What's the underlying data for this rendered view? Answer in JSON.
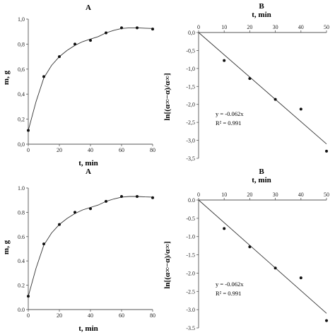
{
  "chart_data": [
    {
      "type": "scatter",
      "title": "A",
      "xlabel": "t, min",
      "ylabel": "m, g",
      "xlim": [
        0,
        80
      ],
      "ylim": [
        0,
        1.0
      ],
      "x_ticks": [
        0,
        20,
        40,
        60,
        80
      ],
      "x_tick_labels": [
        "0",
        "20",
        "40",
        "60",
        "80"
      ],
      "y_ticks": [
        0,
        0.2,
        0.4,
        0.6,
        0.8,
        1.0
      ],
      "y_tick_labels": [
        "0,0",
        "0,2",
        "0,4",
        "0,6",
        "0,8",
        "1,0"
      ],
      "points": [
        [
          0,
          0.11
        ],
        [
          10,
          0.54
        ],
        [
          20,
          0.7
        ],
        [
          30,
          0.8
        ],
        [
          40,
          0.83
        ],
        [
          50,
          0.89
        ],
        [
          60,
          0.93
        ],
        [
          70,
          0.93
        ],
        [
          80,
          0.92
        ]
      ],
      "curve": [
        [
          0,
          0.11
        ],
        [
          5,
          0.34
        ],
        [
          10,
          0.53
        ],
        [
          15,
          0.63
        ],
        [
          20,
          0.7
        ],
        [
          25,
          0.75
        ],
        [
          30,
          0.79
        ],
        [
          35,
          0.82
        ],
        [
          40,
          0.84
        ],
        [
          45,
          0.86
        ],
        [
          50,
          0.89
        ],
        [
          55,
          0.91
        ],
        [
          60,
          0.925
        ],
        [
          65,
          0.93
        ],
        [
          70,
          0.93
        ],
        [
          75,
          0.927
        ],
        [
          80,
          0.925
        ]
      ]
    },
    {
      "type": "scatter",
      "title": "B",
      "xlabel": "t, min",
      "ylabel": "ln[(α∞−α)/α∞]",
      "xlim": [
        0,
        50
      ],
      "ylim": [
        -3.5,
        0
      ],
      "x_ticks": [
        0,
        10,
        20,
        30,
        40,
        50
      ],
      "x_tick_labels": [
        "0",
        "10",
        "20",
        "30",
        "40",
        "50"
      ],
      "y_ticks": [
        0,
        -0.5,
        -1.0,
        -1.5,
        -2.0,
        -2.5,
        -3.0,
        -3.5
      ],
      "y_tick_labels": [
        "0,0",
        "-0,5",
        "-1,0",
        "-1,5",
        "-2,0",
        "-2,5",
        "-3,0",
        "-3,5"
      ],
      "points": [
        [
          10,
          -0.78
        ],
        [
          20,
          -1.28
        ],
        [
          30,
          -1.86
        ],
        [
          40,
          -2.13
        ],
        [
          50,
          -3.3
        ]
      ],
      "fit": {
        "slope": -0.062,
        "intercept": 0,
        "x_range": [
          0,
          50
        ]
      },
      "annotations": [
        "y = -0.062x",
        "R² = 0.991"
      ]
    },
    {
      "type": "scatter",
      "title": "A",
      "xlabel": "t, min",
      "ylabel": "m, g",
      "xlim": [
        0,
        80
      ],
      "ylim": [
        0,
        1.0
      ],
      "x_ticks": [
        0,
        20,
        40,
        60,
        80
      ],
      "x_tick_labels": [
        "0",
        "20",
        "40",
        "60",
        "80"
      ],
      "y_ticks": [
        0,
        0.2,
        0.4,
        0.6,
        0.8,
        1.0
      ],
      "y_tick_labels": [
        "0.0",
        "0.2",
        "0.4",
        "0.6",
        "0.8",
        "1.0"
      ],
      "points": [
        [
          0,
          0.11
        ],
        [
          10,
          0.54
        ],
        [
          20,
          0.7
        ],
        [
          30,
          0.8
        ],
        [
          40,
          0.83
        ],
        [
          50,
          0.89
        ],
        [
          60,
          0.93
        ],
        [
          70,
          0.93
        ],
        [
          80,
          0.92
        ]
      ],
      "curve": [
        [
          0,
          0.11
        ],
        [
          5,
          0.34
        ],
        [
          10,
          0.53
        ],
        [
          15,
          0.63
        ],
        [
          20,
          0.7
        ],
        [
          25,
          0.75
        ],
        [
          30,
          0.79
        ],
        [
          35,
          0.82
        ],
        [
          40,
          0.84
        ],
        [
          45,
          0.86
        ],
        [
          50,
          0.89
        ],
        [
          55,
          0.91
        ],
        [
          60,
          0.925
        ],
        [
          65,
          0.93
        ],
        [
          70,
          0.93
        ],
        [
          75,
          0.927
        ],
        [
          80,
          0.925
        ]
      ]
    },
    {
      "type": "scatter",
      "title": "B",
      "xlabel": "t, min",
      "ylabel": "ln[(α∞−α)/α∞]",
      "xlim": [
        0,
        50
      ],
      "ylim": [
        -3.5,
        0
      ],
      "x_ticks": [
        0,
        10,
        20,
        30,
        40,
        50
      ],
      "x_tick_labels": [
        "0",
        "10",
        "20",
        "30",
        "40",
        "50"
      ],
      "y_ticks": [
        0,
        -0.5,
        -1.0,
        -1.5,
        -2.0,
        -2.5,
        -3.0,
        -3.5
      ],
      "y_tick_labels": [
        "0.0",
        "-0.5",
        "-1.0",
        "-1.5",
        "-2.0",
        "-2.5",
        "-3.0",
        "-3.5"
      ],
      "points": [
        [
          10,
          -0.78
        ],
        [
          20,
          -1.28
        ],
        [
          30,
          -1.86
        ],
        [
          40,
          -2.13
        ],
        [
          50,
          -3.3
        ]
      ],
      "fit": {
        "slope": -0.062,
        "intercept": 0,
        "x_range": [
          0,
          50
        ]
      },
      "annotations": [
        "y = -0.062x",
        "R² = 0.991"
      ]
    }
  ]
}
